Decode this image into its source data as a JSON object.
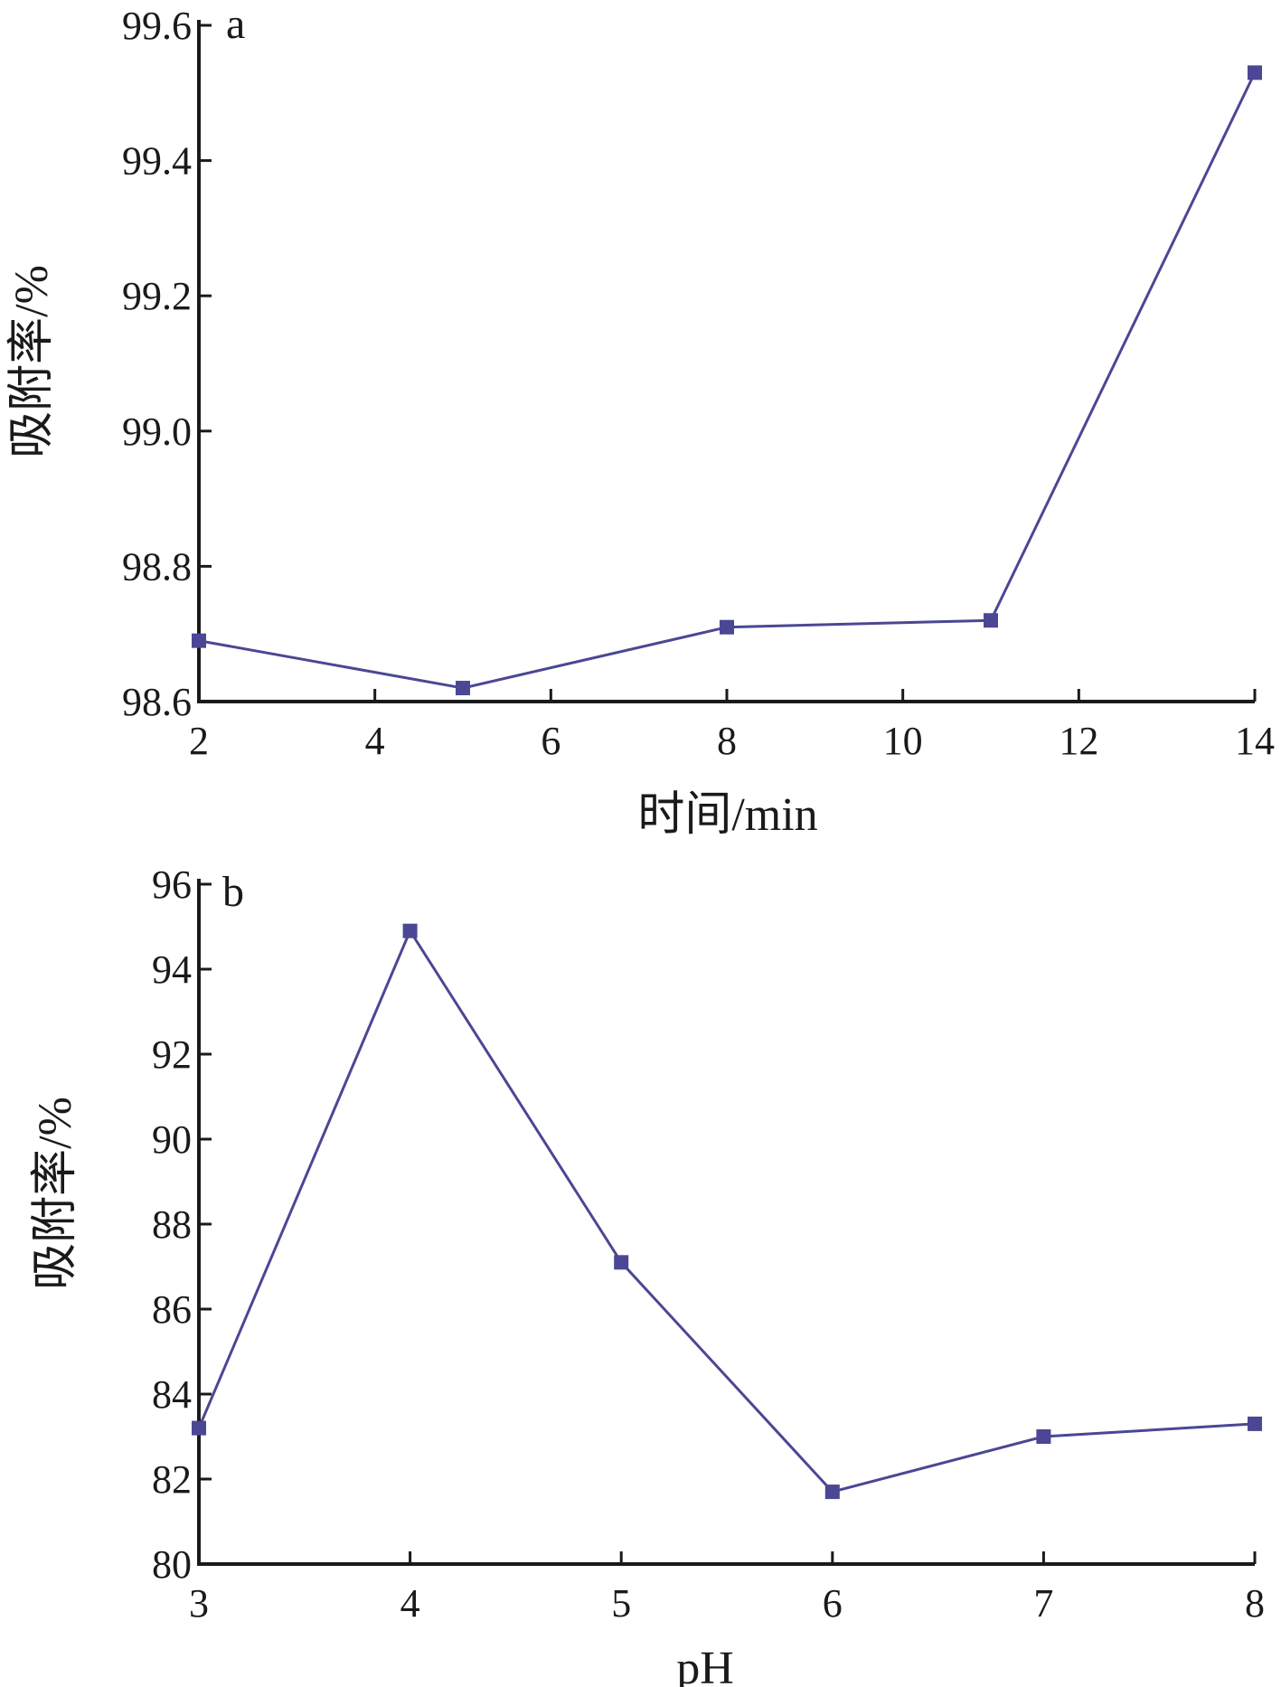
{
  "chart_data": [
    {
      "type": "line",
      "panel_label": "a",
      "xlabel": "时间/min",
      "ylabel": "吸附率/%",
      "xlim": [
        2,
        14
      ],
      "ylim": [
        98.6,
        99.6
      ],
      "xticks": [
        "2",
        "4",
        "6",
        "8",
        "10",
        "12",
        "14"
      ],
      "yticks": [
        "98.6",
        "98.8",
        "99.0",
        "99.2",
        "99.4",
        "99.6"
      ],
      "series": [
        {
          "x": [
            2,
            5,
            8,
            11,
            14
          ],
          "values": [
            98.69,
            98.62,
            98.71,
            98.72,
            99.53
          ]
        }
      ],
      "color": "#4b4794",
      "grid": false
    },
    {
      "type": "line",
      "panel_label": "b",
      "xlabel": "pH",
      "ylabel": "吸附率/%",
      "xlim": [
        3,
        8
      ],
      "ylim": [
        80,
        96
      ],
      "xticks": [
        "3",
        "4",
        "5",
        "6",
        "7",
        "8"
      ],
      "yticks": [
        "80",
        "82",
        "84",
        "86",
        "88",
        "90",
        "92",
        "94",
        "96"
      ],
      "series": [
        {
          "x": [
            3,
            4,
            5,
            6,
            7,
            8
          ],
          "values": [
            83.2,
            94.9,
            87.1,
            81.7,
            83.0,
            83.3
          ]
        }
      ],
      "color": "#4b4794",
      "grid": false
    }
  ]
}
